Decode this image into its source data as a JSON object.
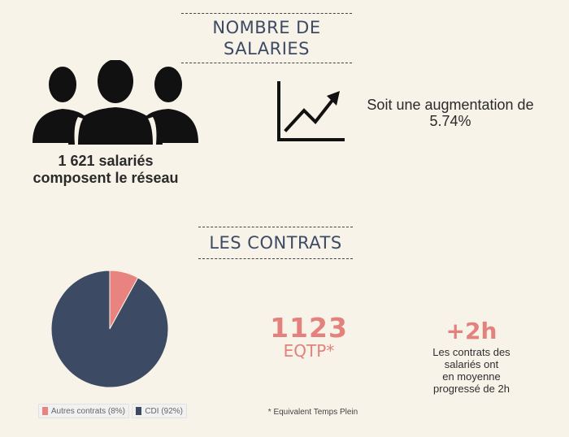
{
  "sections": {
    "salaries_title": "NOMBRE DE SALARIES",
    "contrats_title": "LES CONTRATS"
  },
  "salaries": {
    "line1": "1 621 salariés",
    "line2": "composent le réseau"
  },
  "augmentation": {
    "text": "Soit une augmentation de 5.74%"
  },
  "eqtp": {
    "number": "1123",
    "label": "EQTP*"
  },
  "hours": {
    "number": "+2h",
    "line1": "Les contrats des",
    "line2": "salariés ont",
    "line3": "en moyenne",
    "line4": "progressé de 2h"
  },
  "footnote": "* Equivalent Temps Plein",
  "icons": [
    "people-icon",
    "growth-chart-icon"
  ],
  "chart_data": {
    "type": "pie",
    "categories": [
      "Autres contrats (8%)",
      "CDI (92%)"
    ],
    "values": [
      8,
      92
    ],
    "colors": [
      "#e9837f",
      "#3c4a64"
    ],
    "legend_position": "bottom"
  }
}
